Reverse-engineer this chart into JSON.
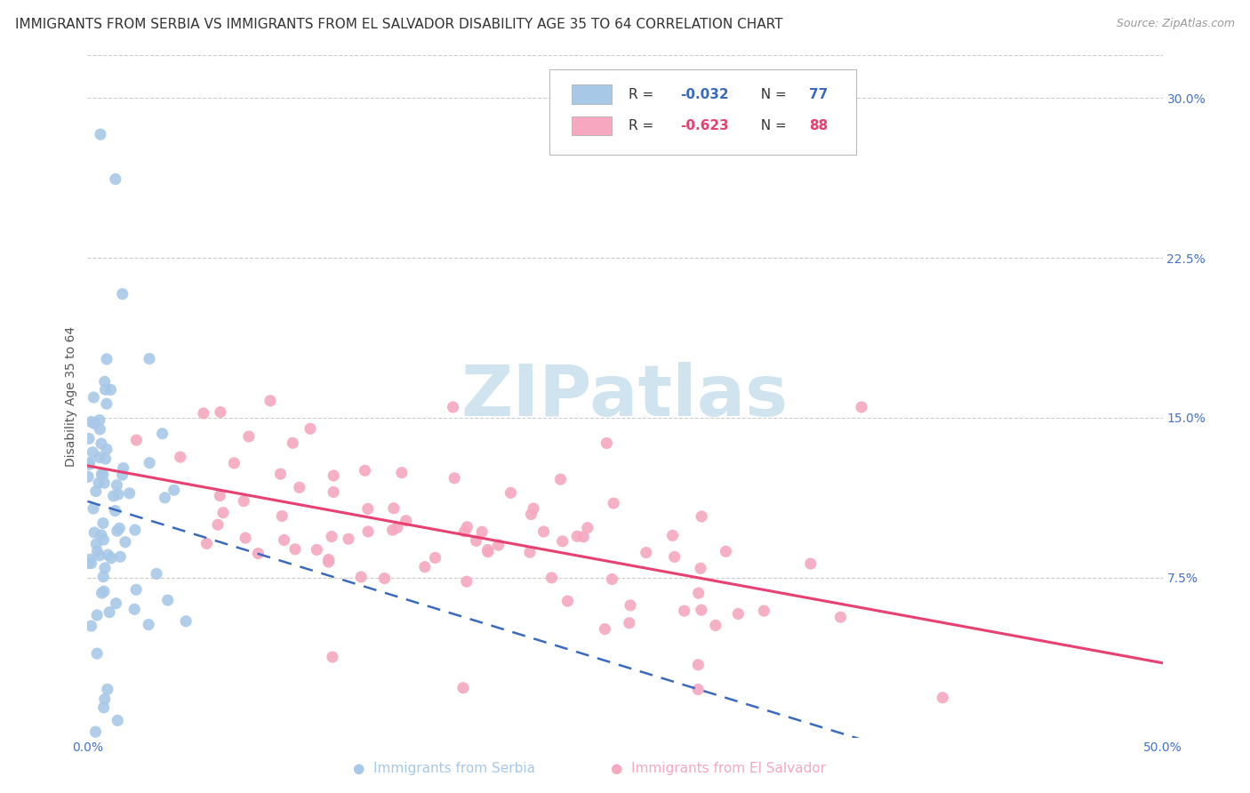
{
  "title": "IMMIGRANTS FROM SERBIA VS IMMIGRANTS FROM EL SALVADOR DISABILITY AGE 35 TO 64 CORRELATION CHART",
  "source": "Source: ZipAtlas.com",
  "ylabel": "Disability Age 35 to 64",
  "xlim": [
    0.0,
    0.5
  ],
  "ylim": [
    0.0,
    0.32
  ],
  "xtick_positions": [
    0.0,
    0.1,
    0.2,
    0.3,
    0.4,
    0.5
  ],
  "xticklabels": [
    "0.0%",
    "",
    "",
    "",
    "",
    "50.0%"
  ],
  "ytick_right_labels": [
    "30.0%",
    "22.5%",
    "15.0%",
    "7.5%"
  ],
  "ytick_right_values": [
    0.3,
    0.225,
    0.15,
    0.075
  ],
  "serbia_color": "#a8c8e8",
  "el_salvador_color": "#f5a8c0",
  "serbia_R": -0.032,
  "serbia_N": 77,
  "el_salvador_R": -0.623,
  "el_salvador_N": 88,
  "serbia_trend_color": "#3a6abf",
  "el_salvador_trend_color": "#e84070",
  "watermark_text": "ZIPatlas",
  "watermark_color": "#d0e4f0",
  "background_color": "#ffffff",
  "grid_color": "#cccccc",
  "title_fontsize": 11,
  "axis_label_fontsize": 10,
  "tick_label_fontsize": 10
}
